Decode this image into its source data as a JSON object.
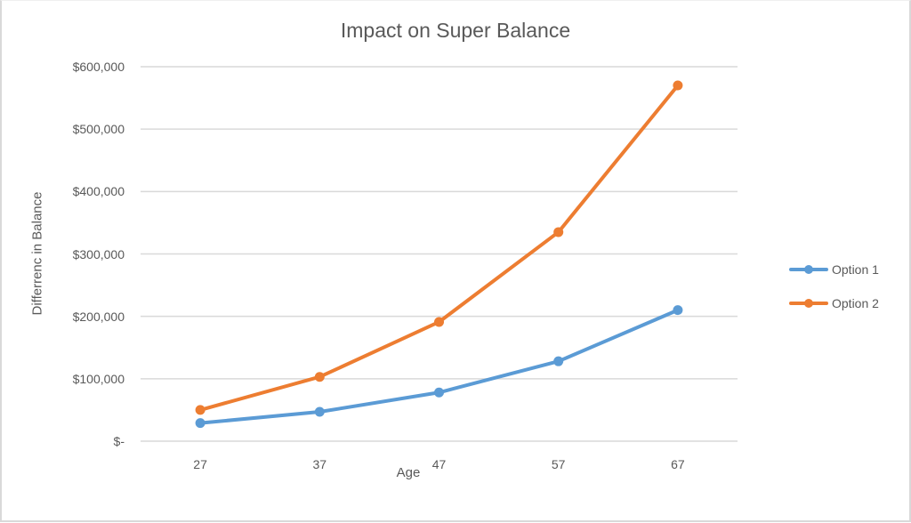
{
  "chart": {
    "title": "Impact on Super Balance",
    "y_axis_title": "Differrenc in Balance",
    "x_axis_title": "Age",
    "y_ticks": [
      "$600,000",
      "$500,000",
      "$400,000",
      "$300,000",
      "$200,000",
      "$100,000",
      "$-"
    ],
    "x_ticks": [
      "27",
      "37",
      "47",
      "57",
      "67"
    ],
    "legend": [
      {
        "label": "Option 1",
        "color": "#5b9bd5"
      },
      {
        "label": "Option 2",
        "color": "#ed7d31"
      }
    ]
  },
  "chart_data": {
    "type": "line",
    "title": "Impact on Super Balance",
    "xlabel": "Age",
    "ylabel": "Differrenc in Balance",
    "categories": [
      27,
      37,
      47,
      57,
      67
    ],
    "series": [
      {
        "name": "Option 1",
        "color": "#5b9bd5",
        "values": [
          29000,
          47000,
          78000,
          128000,
          210000
        ]
      },
      {
        "name": "Option 2",
        "color": "#ed7d31",
        "values": [
          50000,
          103000,
          191000,
          335000,
          570000
        ]
      }
    ],
    "ylim": [
      0,
      600000
    ],
    "ytick_step": 100000,
    "grid": true,
    "legend_position": "right"
  }
}
